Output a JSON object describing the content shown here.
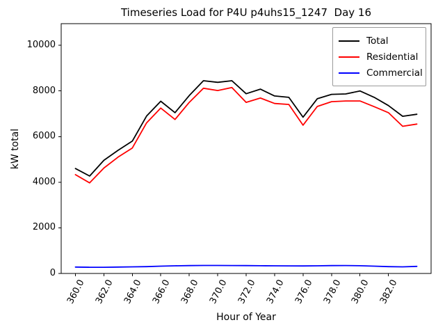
{
  "chart_data": {
    "type": "line",
    "title": "Timeseries Load for P4U p4uhs15_1247  Day 16",
    "xlabel": "Hour of Year",
    "ylabel": "kW total",
    "xlim": [
      359.0,
      385.0
    ],
    "ylim": [
      0,
      10950
    ],
    "grid": false,
    "legend_position": "upper right",
    "x": [
      360,
      361,
      362,
      363,
      364,
      365,
      366,
      367,
      368,
      369,
      370,
      371,
      372,
      373,
      374,
      375,
      376,
      377,
      378,
      379,
      380,
      381,
      382,
      383,
      384
    ],
    "series": [
      {
        "name": "Total",
        "color": "#000000",
        "values": [
          4600,
          4270,
          4960,
          5400,
          5800,
          6900,
          7550,
          7050,
          7800,
          8450,
          8380,
          8450,
          7880,
          8080,
          7780,
          7720,
          6850,
          7660,
          7850,
          7870,
          8000,
          7720,
          7360,
          6890,
          6980
        ]
      },
      {
        "name": "Residential",
        "color": "#ff0000",
        "values": [
          4330,
          3970,
          4620,
          5100,
          5500,
          6600,
          7250,
          6750,
          7500,
          8120,
          8020,
          8150,
          7500,
          7690,
          7450,
          7410,
          6500,
          7320,
          7530,
          7560,
          7560,
          7310,
          7050,
          6450,
          6550
        ]
      },
      {
        "name": "Commercial",
        "color": "#0000ff",
        "values": [
          280,
          270,
          270,
          280,
          290,
          300,
          320,
          335,
          345,
          350,
          350,
          348,
          345,
          340,
          335,
          332,
          330,
          335,
          345,
          348,
          340,
          320,
          300,
          290,
          310
        ]
      }
    ],
    "x_ticks": [
      360,
      362,
      364,
      366,
      368,
      370,
      372,
      374,
      376,
      378,
      380,
      382
    ],
    "x_tick_labels": [
      "360.0",
      "362.0",
      "364.0",
      "366.0",
      "368.0",
      "370.0",
      "372.0",
      "374.0",
      "376.0",
      "378.0",
      "380.0",
      "382.0"
    ],
    "y_ticks": [
      0,
      2000,
      4000,
      6000,
      8000,
      10000
    ],
    "y_tick_labels": [
      "0",
      "2000",
      "4000",
      "6000",
      "8000",
      "10000"
    ]
  },
  "legend": {
    "entries": [
      {
        "label": "Total",
        "color": "#000000"
      },
      {
        "label": "Residential",
        "color": "#ff0000"
      },
      {
        "label": "Commercial",
        "color": "#0000ff"
      }
    ]
  }
}
